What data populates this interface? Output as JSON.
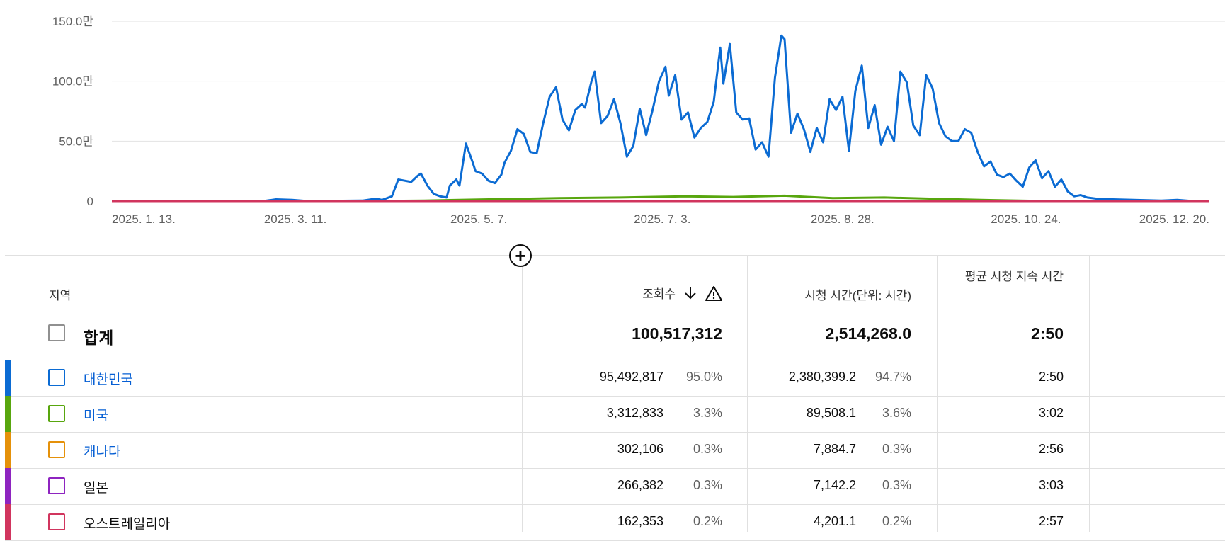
{
  "chart_data": {
    "type": "line",
    "y_ticks": [
      "150.0만",
      "100.0만",
      "50.0만",
      "0"
    ],
    "y_tick_values": [
      1500000,
      1000000,
      500000,
      0
    ],
    "ylim": [
      0,
      1500000
    ],
    "x_ticks": [
      "2025. 1. 13.",
      "2025. 3. 11.",
      "2025. 5. 7.",
      "2025. 7. 3.",
      "2025. 8. 28.",
      "2025. 10. 24.",
      "2025. 12. 20."
    ],
    "x_tick_dates": [
      "2025-01-13",
      "2025-03-11",
      "2025-05-07",
      "2025-07-03",
      "2025-08-28",
      "2025-10-24",
      "2025-12-20"
    ],
    "grid": true,
    "series": [
      {
        "name": "대한민국",
        "color": "#0b6bd3",
        "points": [
          [
            "2025-01-13",
            0
          ],
          [
            "2025-03-01",
            0
          ],
          [
            "2025-03-05",
            15000
          ],
          [
            "2025-03-10",
            10000
          ],
          [
            "2025-03-15",
            0
          ],
          [
            "2025-04-01",
            5000
          ],
          [
            "2025-04-05",
            20000
          ],
          [
            "2025-04-07",
            10000
          ],
          [
            "2025-04-10",
            40000
          ],
          [
            "2025-04-12",
            180000
          ],
          [
            "2025-04-14",
            170000
          ],
          [
            "2025-04-16",
            160000
          ],
          [
            "2025-04-18",
            210000
          ],
          [
            "2025-04-19",
            230000
          ],
          [
            "2025-04-21",
            130000
          ],
          [
            "2025-04-23",
            60000
          ],
          [
            "2025-04-25",
            40000
          ],
          [
            "2025-04-27",
            30000
          ],
          [
            "2025-04-28",
            130000
          ],
          [
            "2025-04-30",
            180000
          ],
          [
            "2025-05-01",
            130000
          ],
          [
            "2025-05-03",
            480000
          ],
          [
            "2025-05-05",
            330000
          ],
          [
            "2025-05-06",
            250000
          ],
          [
            "2025-05-08",
            230000
          ],
          [
            "2025-05-10",
            170000
          ],
          [
            "2025-05-12",
            150000
          ],
          [
            "2025-05-14",
            220000
          ],
          [
            "2025-05-15",
            320000
          ],
          [
            "2025-05-17",
            420000
          ],
          [
            "2025-05-19",
            600000
          ],
          [
            "2025-05-21",
            560000
          ],
          [
            "2025-05-23",
            410000
          ],
          [
            "2025-05-25",
            400000
          ],
          [
            "2025-05-27",
            650000
          ],
          [
            "2025-05-29",
            870000
          ],
          [
            "2025-05-31",
            950000
          ],
          [
            "2025-06-02",
            680000
          ],
          [
            "2025-06-04",
            590000
          ],
          [
            "2025-06-06",
            760000
          ],
          [
            "2025-06-08",
            810000
          ],
          [
            "2025-06-09",
            780000
          ],
          [
            "2025-06-11",
            1000000
          ],
          [
            "2025-06-12",
            1080000
          ],
          [
            "2025-06-14",
            650000
          ],
          [
            "2025-06-16",
            710000
          ],
          [
            "2025-06-18",
            850000
          ],
          [
            "2025-06-20",
            650000
          ],
          [
            "2025-06-22",
            370000
          ],
          [
            "2025-06-24",
            460000
          ],
          [
            "2025-06-26",
            770000
          ],
          [
            "2025-06-28",
            550000
          ],
          [
            "2025-06-30",
            760000
          ],
          [
            "2025-07-02",
            1000000
          ],
          [
            "2025-07-04",
            1120000
          ],
          [
            "2025-07-05",
            880000
          ],
          [
            "2025-07-07",
            1050000
          ],
          [
            "2025-07-09",
            680000
          ],
          [
            "2025-07-11",
            740000
          ],
          [
            "2025-07-13",
            530000
          ],
          [
            "2025-07-15",
            610000
          ],
          [
            "2025-07-17",
            660000
          ],
          [
            "2025-07-19",
            830000
          ],
          [
            "2025-07-21",
            1280000
          ],
          [
            "2025-07-22",
            980000
          ],
          [
            "2025-07-24",
            1310000
          ],
          [
            "2025-07-26",
            740000
          ],
          [
            "2025-07-28",
            680000
          ],
          [
            "2025-07-30",
            690000
          ],
          [
            "2025-08-01",
            430000
          ],
          [
            "2025-08-03",
            490000
          ],
          [
            "2025-08-05",
            370000
          ],
          [
            "2025-08-07",
            1030000
          ],
          [
            "2025-08-09",
            1380000
          ],
          [
            "2025-08-10",
            1350000
          ],
          [
            "2025-08-12",
            570000
          ],
          [
            "2025-08-14",
            730000
          ],
          [
            "2025-08-16",
            600000
          ],
          [
            "2025-08-18",
            410000
          ],
          [
            "2025-08-20",
            610000
          ],
          [
            "2025-08-22",
            490000
          ],
          [
            "2025-08-24",
            850000
          ],
          [
            "2025-08-26",
            760000
          ],
          [
            "2025-08-28",
            870000
          ],
          [
            "2025-08-30",
            420000
          ],
          [
            "2025-09-01",
            920000
          ],
          [
            "2025-09-03",
            1130000
          ],
          [
            "2025-09-05",
            610000
          ],
          [
            "2025-09-07",
            800000
          ],
          [
            "2025-09-09",
            470000
          ],
          [
            "2025-09-11",
            620000
          ],
          [
            "2025-09-13",
            500000
          ],
          [
            "2025-09-15",
            1080000
          ],
          [
            "2025-09-17",
            990000
          ],
          [
            "2025-09-19",
            630000
          ],
          [
            "2025-09-21",
            550000
          ],
          [
            "2025-09-23",
            1050000
          ],
          [
            "2025-09-25",
            940000
          ],
          [
            "2025-09-27",
            650000
          ],
          [
            "2025-09-29",
            540000
          ],
          [
            "2025-10-01",
            500000
          ],
          [
            "2025-10-03",
            500000
          ],
          [
            "2025-10-05",
            600000
          ],
          [
            "2025-10-07",
            570000
          ],
          [
            "2025-10-09",
            410000
          ],
          [
            "2025-10-11",
            290000
          ],
          [
            "2025-10-13",
            330000
          ],
          [
            "2025-10-15",
            220000
          ],
          [
            "2025-10-17",
            200000
          ],
          [
            "2025-10-19",
            230000
          ],
          [
            "2025-10-21",
            170000
          ],
          [
            "2025-10-23",
            120000
          ],
          [
            "2025-10-25",
            280000
          ],
          [
            "2025-10-27",
            340000
          ],
          [
            "2025-10-29",
            190000
          ],
          [
            "2025-10-31",
            250000
          ],
          [
            "2025-11-02",
            120000
          ],
          [
            "2025-11-04",
            180000
          ],
          [
            "2025-11-06",
            80000
          ],
          [
            "2025-11-08",
            40000
          ],
          [
            "2025-11-10",
            50000
          ],
          [
            "2025-11-12",
            30000
          ],
          [
            "2025-11-15",
            20000
          ],
          [
            "2025-11-20",
            15000
          ],
          [
            "2025-12-05",
            5000
          ],
          [
            "2025-12-10",
            10000
          ],
          [
            "2025-12-15",
            0
          ],
          [
            "2025-12-20",
            0
          ]
        ]
      },
      {
        "name": "미국",
        "color": "#58a60e",
        "points": [
          [
            "2025-01-13",
            0
          ],
          [
            "2025-04-01",
            0
          ],
          [
            "2025-04-20",
            5000
          ],
          [
            "2025-05-10",
            15000
          ],
          [
            "2025-06-01",
            25000
          ],
          [
            "2025-06-20",
            30000
          ],
          [
            "2025-07-10",
            40000
          ],
          [
            "2025-07-25",
            35000
          ],
          [
            "2025-08-10",
            45000
          ],
          [
            "2025-08-25",
            25000
          ],
          [
            "2025-09-10",
            30000
          ],
          [
            "2025-09-25",
            20000
          ],
          [
            "2025-10-10",
            10000
          ],
          [
            "2025-10-25",
            3000
          ],
          [
            "2025-11-15",
            0
          ],
          [
            "2025-12-20",
            0
          ]
        ]
      },
      {
        "name": "오스트레일리아",
        "color": "#d1355e",
        "points": [
          [
            "2025-01-13",
            0
          ],
          [
            "2025-12-20",
            0
          ]
        ]
      }
    ]
  },
  "table": {
    "headers": {
      "region": "지역",
      "views": "조회수",
      "watch_time": "시청 시간(단위: 시간)",
      "avg_duration": "평균 시청 지속 시간"
    },
    "sort_icon": "arrow-down-icon",
    "warning_icon": "warning-icon",
    "add_icon": "add-circle-icon",
    "total": {
      "label": "합계",
      "views": "100,517,312",
      "watch_time": "2,514,268.0",
      "avg": "2:50"
    },
    "rows": [
      {
        "name": "대한민국",
        "color": "#0b6bd3",
        "views": "95,492,817",
        "views_pct": "95.0%",
        "watch": "2,380,399.2",
        "watch_pct": "94.7%",
        "avg": "2:50"
      },
      {
        "name": "미국",
        "color": "#58a60e",
        "views": "3,312,833",
        "views_pct": "3.3%",
        "watch": "89,508.1",
        "watch_pct": "3.6%",
        "avg": "3:02"
      },
      {
        "name": "캐나다",
        "color": "#e5910a",
        "views": "302,106",
        "views_pct": "0.3%",
        "watch": "7,884.7",
        "watch_pct": "0.3%",
        "avg": "2:56"
      },
      {
        "name": "일본",
        "color": "#8e24c0",
        "views": "266,382",
        "views_pct": "0.3%",
        "watch": "7,142.2",
        "watch_pct": "0.3%",
        "avg": "3:03"
      },
      {
        "name": "오스트레일리아",
        "color": "#d1355e",
        "views": "162,353",
        "views_pct": "0.2%",
        "watch": "4,201.1",
        "watch_pct": "0.2%",
        "avg": "2:57"
      }
    ]
  }
}
